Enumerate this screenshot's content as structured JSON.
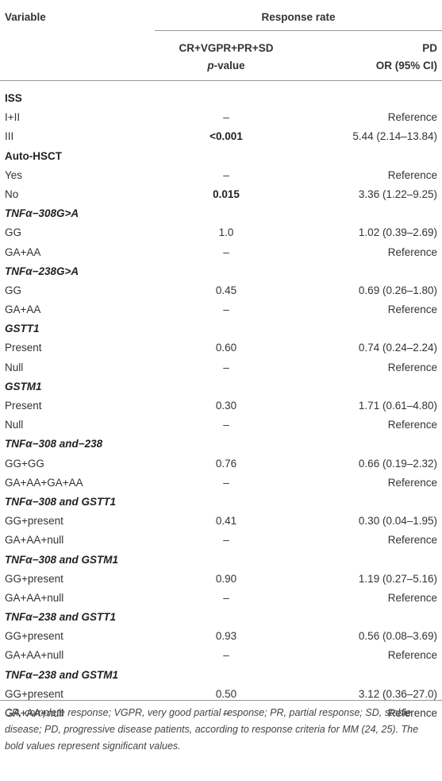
{
  "header": {
    "variable": "Variable",
    "response_rate": "Response rate",
    "col1_line1": "CR+VGPR+PR+SD",
    "col1_line2_italic": "p",
    "col1_line2_rest": "-value",
    "col2_line1": "PD",
    "col2_line2": "OR (95% CI)"
  },
  "rows": [
    {
      "type": "section",
      "label": "ISS",
      "italic": false
    },
    {
      "type": "data",
      "label": "I+II",
      "p": "–",
      "or": "Reference",
      "p_bold": false
    },
    {
      "type": "data",
      "label": "III",
      "p": "<0.001",
      "or": "5.44 (2.14–13.84)",
      "p_bold": true
    },
    {
      "type": "section",
      "label": "Auto-HSCT",
      "italic": false
    },
    {
      "type": "data",
      "label": "Yes",
      "p": "–",
      "or": "Reference",
      "p_bold": false
    },
    {
      "type": "data",
      "label": "No",
      "p": "0.015",
      "or": "3.36 (1.22–9.25)",
      "p_bold": true
    },
    {
      "type": "section",
      "label": "TNFα−308G>A",
      "italic": true
    },
    {
      "type": "data",
      "label": "GG",
      "p": "1.0",
      "or": "1.02 (0.39–2.69)",
      "p_bold": false
    },
    {
      "type": "data",
      "label": "GA+AA",
      "p": "–",
      "or": "Reference",
      "p_bold": false
    },
    {
      "type": "section",
      "label": "TNFα−238G>A",
      "italic": true
    },
    {
      "type": "data",
      "label": "GG",
      "p": "0.45",
      "or": "0.69 (0.26–1.80)",
      "p_bold": false
    },
    {
      "type": "data",
      "label": "GA+AA",
      "p": "–",
      "or": "Reference",
      "p_bold": false
    },
    {
      "type": "section",
      "label": "GSTT1",
      "italic": true
    },
    {
      "type": "data",
      "label": "Present",
      "p": "0.60",
      "or": "0.74 (0.24–2.24)",
      "p_bold": false
    },
    {
      "type": "data",
      "label": "Null",
      "p": "–",
      "or": "Reference",
      "p_bold": false
    },
    {
      "type": "section",
      "label": "GSTM1",
      "italic": true
    },
    {
      "type": "data",
      "label": "Present",
      "p": "0.30",
      "or": "1.71 (0.61–4.80)",
      "p_bold": false
    },
    {
      "type": "data",
      "label": "Null",
      "p": "–",
      "or": "Reference",
      "p_bold": false
    },
    {
      "type": "section",
      "label": "TNFα−308 and−238",
      "italic": true
    },
    {
      "type": "data",
      "label": "GG+GG",
      "p": "0.76",
      "or": "0.66 (0.19–2.32)",
      "p_bold": false
    },
    {
      "type": "data",
      "label": "GA+AA+GA+AA",
      "p": "–",
      "or": "Reference",
      "p_bold": false
    },
    {
      "type": "section",
      "label": "TNFα−308 and GSTT1",
      "italic": true
    },
    {
      "type": "data",
      "label": "GG+present",
      "p": "0.41",
      "or": "0.30 (0.04–1.95)",
      "p_bold": false
    },
    {
      "type": "data",
      "label": "GA+AA+null",
      "p": "–",
      "or": "Reference",
      "p_bold": false
    },
    {
      "type": "section",
      "label": "TNFα−308 and GSTM1",
      "italic": true
    },
    {
      "type": "data",
      "label": "GG+present",
      "p": "0.90",
      "or": "1.19 (0.27–5.16)",
      "p_bold": false
    },
    {
      "type": "data",
      "label": "GA+AA+null",
      "p": "–",
      "or": "Reference",
      "p_bold": false
    },
    {
      "type": "section",
      "label": "TNFα−238 and GSTT1",
      "italic": true
    },
    {
      "type": "data",
      "label": "GG+present",
      "p": "0.93",
      "or": "0.56 (0.08–3.69)",
      "p_bold": false
    },
    {
      "type": "data",
      "label": "GA+AA+null",
      "p": "–",
      "or": "Reference",
      "p_bold": false
    },
    {
      "type": "section",
      "label": "TNFα−238 and GSTM1",
      "italic": true
    },
    {
      "type": "data",
      "label": "GG+present",
      "p": "0.50",
      "or": "3.12 (0.36–27.0)",
      "p_bold": false
    },
    {
      "type": "data",
      "label": "GA+AA+null",
      "p": "–",
      "or": "Reference",
      "p_bold": false
    }
  ],
  "footnote": "CR, complete response; VGPR, very good partial response; PR, partial response; SD, stable disease; PD, progressive disease patients, according to response criteria for MM (24, 25). The bold values represent significant values."
}
